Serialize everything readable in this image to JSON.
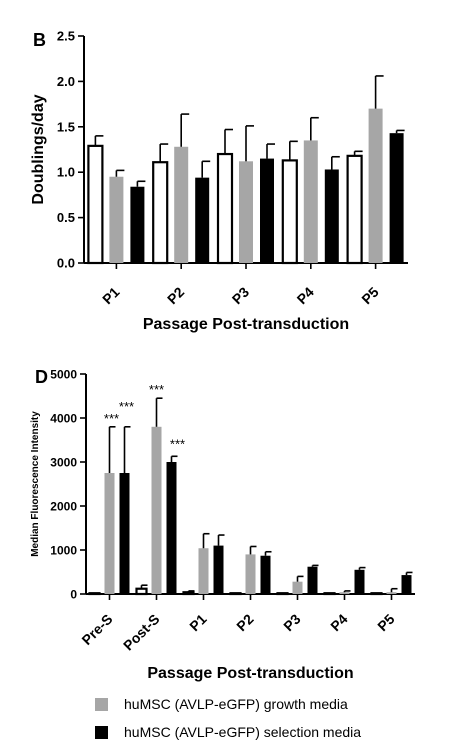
{
  "chart_data": [
    {
      "type": "bar",
      "panel_label": "B",
      "title": "",
      "xlabel": "Passage Post-transduction",
      "ylabel": "Doublings/day",
      "ylim": [
        0,
        2.5
      ],
      "yticks": [
        0.0,
        0.5,
        1.0,
        1.5,
        2.0,
        2.5
      ],
      "ytick_labels": [
        "0.0",
        "0.5",
        "1.0",
        "1.5",
        "2.0",
        "2.5"
      ],
      "categories": [
        "P1",
        "P2",
        "P3",
        "P4",
        "P5"
      ],
      "series": [
        {
          "fill": "#ffffff",
          "values": [
            1.29,
            1.11,
            1.2,
            1.13,
            1.18
          ],
          "errors": [
            0.11,
            0.2,
            0.27,
            0.21,
            0.05
          ]
        },
        {
          "fill": "#a6a6a6",
          "values": [
            0.95,
            1.28,
            1.12,
            1.35,
            1.7
          ],
          "errors": [
            0.07,
            0.36,
            0.39,
            0.25,
            0.36
          ]
        },
        {
          "fill": "#000000",
          "values": [
            0.84,
            0.94,
            1.15,
            1.03,
            1.43
          ],
          "errors": [
            0.06,
            0.18,
            0.16,
            0.14,
            0.03
          ]
        }
      ],
      "grid": false,
      "legend": "none"
    },
    {
      "type": "bar",
      "panel_label": "D",
      "title": "",
      "xlabel": "Passage Post-transduction",
      "ylabel": "Median Fluorescence Intensity",
      "ylim": [
        0,
        5000
      ],
      "yticks": [
        0,
        1000,
        2000,
        3000,
        4000,
        5000
      ],
      "ytick_labels": [
        "0",
        "1000",
        "2000",
        "3000",
        "4000",
        "5000"
      ],
      "categories": [
        "Pre-S",
        "Post-S",
        "P1",
        "P2",
        "P3",
        "P4",
        "P5"
      ],
      "series": [
        {
          "fill": "#ffffff",
          "values": [
            5,
            120,
            40,
            15,
            10,
            10,
            10
          ],
          "errors": [
            0,
            80,
            30,
            0,
            0,
            0,
            0
          ]
        },
        {
          "name": "huMSC (AVLP-eGFP) growth media",
          "fill": "#a6a6a6",
          "values": [
            2750,
            3800,
            1040,
            900,
            280,
            40,
            40
          ],
          "errors": [
            1050,
            650,
            330,
            180,
            120,
            30,
            80
          ]
        },
        {
          "name": "huMSC (AVLP-eGFP) selection media",
          "fill": "#000000",
          "values": [
            2750,
            3000,
            1100,
            870,
            620,
            550,
            430
          ],
          "errors": [
            1050,
            130,
            240,
            90,
            30,
            50,
            60
          ]
        }
      ],
      "annotations": [
        {
          "text": "***",
          "category": "Pre-S",
          "series": 1
        },
        {
          "text": "***",
          "category": "Pre-S",
          "series": 2
        },
        {
          "text": "***",
          "category": "Post-S",
          "series": 1
        },
        {
          "text": "***",
          "category": "Post-S",
          "series": 2
        }
      ],
      "grid": false,
      "legend": "bottom"
    }
  ]
}
